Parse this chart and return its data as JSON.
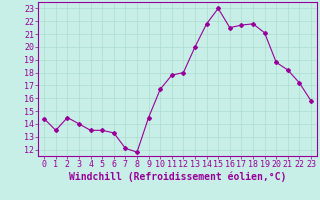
{
  "x": [
    0,
    1,
    2,
    3,
    4,
    5,
    6,
    7,
    8,
    9,
    10,
    11,
    12,
    13,
    14,
    15,
    16,
    17,
    18,
    19,
    20,
    21,
    22,
    23
  ],
  "y": [
    14.4,
    13.5,
    14.5,
    14.0,
    13.5,
    13.5,
    13.3,
    12.1,
    11.8,
    14.5,
    16.7,
    17.8,
    18.0,
    20.0,
    21.8,
    23.0,
    21.5,
    21.7,
    21.8,
    21.1,
    18.8,
    18.2,
    17.2,
    15.8
  ],
  "line_color": "#990099",
  "marker": "D",
  "marker_size": 2,
  "bg_color": "#c8eee8",
  "grid_color": "#aaddcc",
  "xlabel": "Windchill (Refroidissement éolien,°C)",
  "ylim": [
    11.5,
    23.5
  ],
  "xlim": [
    -0.5,
    23.5
  ],
  "yticks": [
    12,
    13,
    14,
    15,
    16,
    17,
    18,
    19,
    20,
    21,
    22,
    23
  ],
  "xticks": [
    0,
    1,
    2,
    3,
    4,
    5,
    6,
    7,
    8,
    9,
    10,
    11,
    12,
    13,
    14,
    15,
    16,
    17,
    18,
    19,
    20,
    21,
    22,
    23
  ],
  "tick_color": "#990099",
  "label_color": "#990099",
  "xlabel_fontsize": 7,
  "tick_fontsize": 6,
  "spine_color": "#990099"
}
